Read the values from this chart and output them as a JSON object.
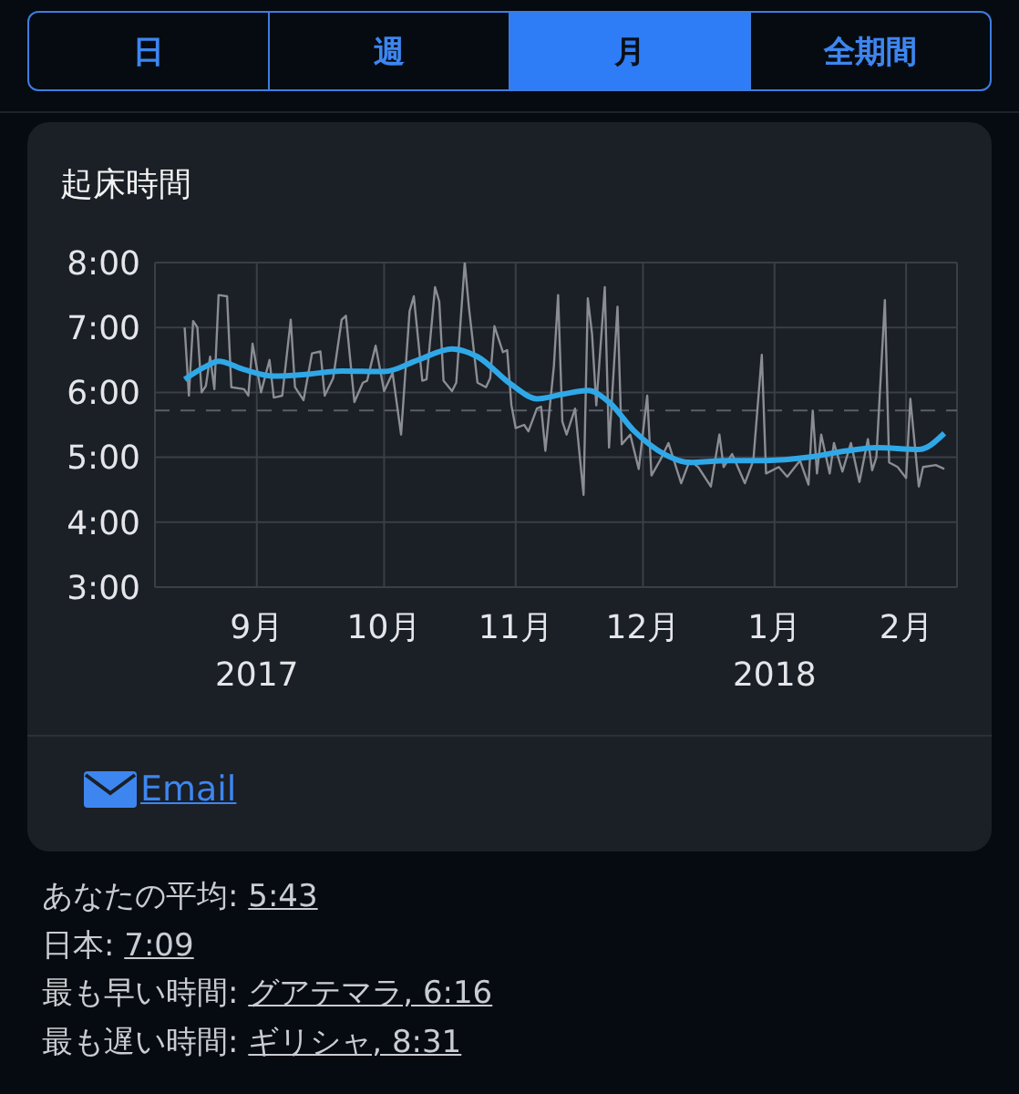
{
  "chart_data": {
    "type": "line",
    "title": "起床時間",
    "annotations": [
      "日",
      "週",
      "月",
      "全期間",
      "Email",
      "あなたの平均: 5:43",
      "日本: 7:09",
      "最も早い時間: グアテマラ, 6:16",
      "最も遅い時間: ギリシャ, 8:31"
    ],
    "xlim": [
      "2017-08-08",
      "2018-02-13"
    ],
    "xticks": [
      {
        "value": "2017-09-01",
        "label": "9月\n2017"
      },
      {
        "value": "2017-10-01",
        "label": "10月"
      },
      {
        "value": "2017-11-01",
        "label": "11月"
      },
      {
        "value": "2017-12-01",
        "label": "12月"
      },
      {
        "value": "2018-01-01",
        "label": "1月\n2018"
      },
      {
        "value": "2018-02-01",
        "label": "2月"
      }
    ],
    "ylim": [
      3,
      8
    ],
    "yticks": [
      {
        "value": 3,
        "label": "3:00"
      },
      {
        "value": 4,
        "label": "4:00"
      },
      {
        "value": 5,
        "label": "5:00"
      },
      {
        "value": 6,
        "label": "6:00"
      },
      {
        "value": 7,
        "label": "7:00"
      },
      {
        "value": 8,
        "label": "8:00"
      }
    ],
    "grid": true,
    "marker": "none",
    "line_style": "solid",
    "ref_lines": [
      {
        "axis": "y",
        "value": 5.72,
        "color": "#5a5f66",
        "line_style": "dashed"
      }
    ],
    "series": [
      {
        "color": "#8a8d92",
        "x": [
          "2017-08-15",
          "2017-08-16",
          "2017-08-17",
          "2017-08-18",
          "2017-08-19",
          "2017-08-20",
          "2017-08-21",
          "2017-08-22",
          "2017-08-23",
          "2017-08-25",
          "2017-08-26",
          "2017-08-29",
          "2017-08-30",
          "2017-08-31",
          "2017-09-02",
          "2017-09-04",
          "2017-09-05",
          "2017-09-07",
          "2017-09-09",
          "2017-09-10",
          "2017-09-12",
          "2017-09-14",
          "2017-09-16",
          "2017-09-17",
          "2017-09-19",
          "2017-09-21",
          "2017-09-22",
          "2017-09-24",
          "2017-09-26",
          "2017-09-27",
          "2017-09-29",
          "2017-10-01",
          "2017-10-03",
          "2017-10-05",
          "2017-10-07",
          "2017-10-08",
          "2017-10-10",
          "2017-10-11",
          "2017-10-13",
          "2017-10-14",
          "2017-10-15",
          "2017-10-17",
          "2017-10-18",
          "2017-10-20",
          "2017-10-21",
          "2017-10-23",
          "2017-10-25",
          "2017-10-26",
          "2017-10-27",
          "2017-10-29",
          "2017-10-30",
          "2017-10-31",
          "2017-11-01",
          "2017-11-03",
          "2017-11-04",
          "2017-11-06",
          "2017-11-07",
          "2017-11-08",
          "2017-11-10",
          "2017-11-11",
          "2017-11-12",
          "2017-11-13",
          "2017-11-15",
          "2017-11-17",
          "2017-11-18",
          "2017-11-19",
          "2017-11-20",
          "2017-11-22",
          "2017-11-23",
          "2017-11-25",
          "2017-11-26",
          "2017-11-28",
          "2017-11-30",
          "2017-12-02",
          "2017-12-03",
          "2017-12-05",
          "2017-12-07",
          "2017-12-10",
          "2017-12-12",
          "2017-12-14",
          "2017-12-17",
          "2017-12-19",
          "2017-12-20",
          "2017-12-22",
          "2017-12-25",
          "2017-12-27",
          "2017-12-29",
          "2017-12-30",
          "2018-01-02",
          "2018-01-04",
          "2018-01-07",
          "2018-01-09",
          "2018-01-10",
          "2018-01-11",
          "2018-01-12",
          "2018-01-14",
          "2018-01-15",
          "2018-01-17",
          "2018-01-19",
          "2018-01-21",
          "2018-01-23",
          "2018-01-24",
          "2018-01-25",
          "2018-01-27",
          "2018-01-28",
          "2018-01-30",
          "2018-02-01",
          "2018-02-02",
          "2018-02-04",
          "2018-02-05",
          "2018-02-08",
          "2018-02-10"
        ],
        "values": [
          7.0,
          5.95,
          7.1,
          7.0,
          6.0,
          6.1,
          6.55,
          6.05,
          7.5,
          7.48,
          6.08,
          6.05,
          5.95,
          6.75,
          6.0,
          6.5,
          5.92,
          5.95,
          7.12,
          6.08,
          5.88,
          6.6,
          6.63,
          5.95,
          6.22,
          7.12,
          7.18,
          5.85,
          6.15,
          6.18,
          6.72,
          6.02,
          6.3,
          5.35,
          7.25,
          7.48,
          6.18,
          6.2,
          7.62,
          7.4,
          6.18,
          6.02,
          6.15,
          8.0,
          7.3,
          6.15,
          6.08,
          6.22,
          7.02,
          6.62,
          6.65,
          5.8,
          5.45,
          5.5,
          5.4,
          5.75,
          5.78,
          5.1,
          6.4,
          7.5,
          5.55,
          5.35,
          5.75,
          4.42,
          7.45,
          6.9,
          5.8,
          7.62,
          5.15,
          7.32,
          5.2,
          5.35,
          4.82,
          5.95,
          4.72,
          4.95,
          5.22,
          4.6,
          4.95,
          4.85,
          4.55,
          5.35,
          4.85,
          5.05,
          4.6,
          4.95,
          6.58,
          4.75,
          4.85,
          4.7,
          4.95,
          4.58,
          5.72,
          4.75,
          5.35,
          4.75,
          5.22,
          4.78,
          5.22,
          4.62,
          5.28,
          4.8,
          5.0,
          7.42,
          4.92,
          4.85,
          4.68,
          5.9,
          4.55,
          4.85,
          4.88,
          4.82
        ]
      },
      {
        "color": "#2fa8e8",
        "x": [
          "2017-08-15",
          "2017-08-20",
          "2017-08-23",
          "2017-08-29",
          "2017-09-05",
          "2017-09-13",
          "2017-09-21",
          "2017-10-01",
          "2017-10-09",
          "2017-10-17",
          "2017-10-23",
          "2017-10-31",
          "2017-11-06",
          "2017-11-12",
          "2017-11-18",
          "2017-11-23",
          "2017-11-29",
          "2017-12-06",
          "2017-12-12",
          "2017-12-21",
          "2017-12-30",
          "2018-01-09",
          "2018-01-18",
          "2018-01-25",
          "2018-02-04",
          "2018-02-10"
        ],
        "values": [
          6.2,
          6.4,
          6.48,
          6.35,
          6.25,
          6.28,
          6.33,
          6.32,
          6.5,
          6.67,
          6.55,
          6.12,
          5.9,
          5.97,
          6.03,
          5.85,
          5.4,
          5.05,
          4.92,
          4.95,
          4.95,
          5.0,
          5.1,
          5.15,
          5.12,
          5.37
        ]
      }
    ]
  }
}
